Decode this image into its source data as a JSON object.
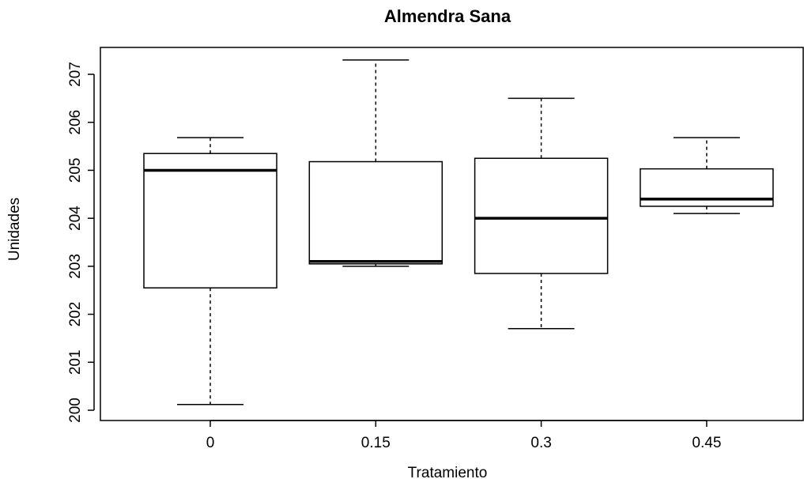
{
  "chart_data": {
    "type": "boxplot",
    "title": "Almendra Sana",
    "xlabel": "Tratamiento",
    "ylabel": "Unidades",
    "categories": [
      "0",
      "0.15",
      "0.3",
      "0.45"
    ],
    "y_ticks": [
      200,
      201,
      202,
      203,
      204,
      205,
      206,
      207
    ],
    "y_tick_labels": [
      "200",
      "201",
      "202",
      "203",
      "204",
      "205",
      "206",
      "207"
    ],
    "ylim": [
      199.8,
      207.6
    ],
    "boxes": [
      {
        "category": "0",
        "min": 200.12,
        "q1": 202.55,
        "median": 205.0,
        "q3": 205.35,
        "max": 205.68
      },
      {
        "category": "0.15",
        "min": 203.0,
        "q1": 203.05,
        "median": 203.1,
        "q3": 205.18,
        "max": 207.3
      },
      {
        "category": "0.3",
        "min": 201.7,
        "q1": 202.85,
        "median": 204.0,
        "q3": 205.25,
        "max": 206.5
      },
      {
        "category": "0.45",
        "min": 204.1,
        "q1": 204.25,
        "median": 204.4,
        "q3": 205.03,
        "max": 205.68
      }
    ],
    "grid": false,
    "legend": "none"
  },
  "colors": {
    "box_fill": "#ffffff",
    "stroke": "#000000"
  }
}
